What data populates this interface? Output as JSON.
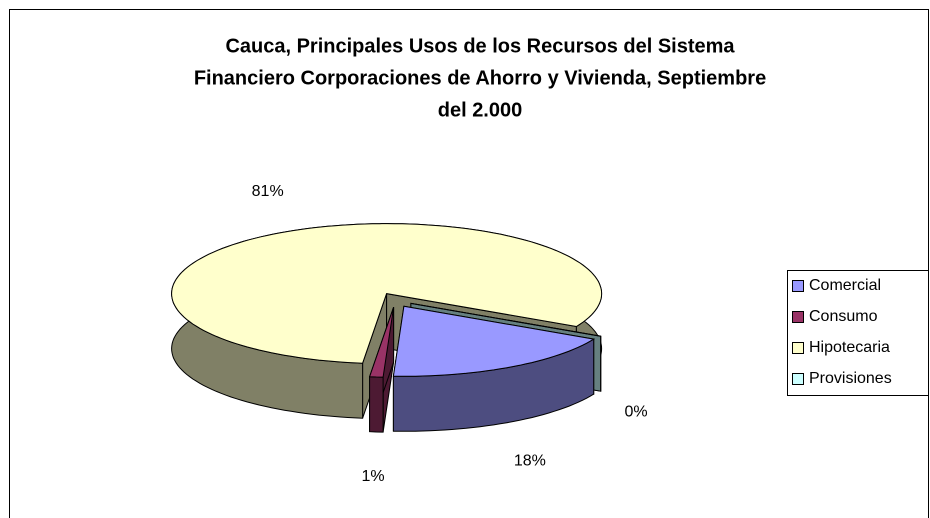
{
  "chart_data": {
    "type": "pie3d",
    "title": [
      "Cauca, Principales Usos de los Recursos del Sistema",
      "Financiero Corporaciones de Ahorro y Vivienda, Septiembre",
      "del 2.000"
    ],
    "categories": [
      "Comercial",
      "Consumo",
      "Hipotecaria",
      "Provisiones"
    ],
    "values": [
      18,
      1,
      81,
      0
    ],
    "value_labels": [
      "18%",
      "1%",
      "81%",
      "0%"
    ],
    "colors": [
      "#9999FF",
      "#993366",
      "#FFFFCC",
      "#CCFFFF"
    ],
    "legend": "right"
  }
}
